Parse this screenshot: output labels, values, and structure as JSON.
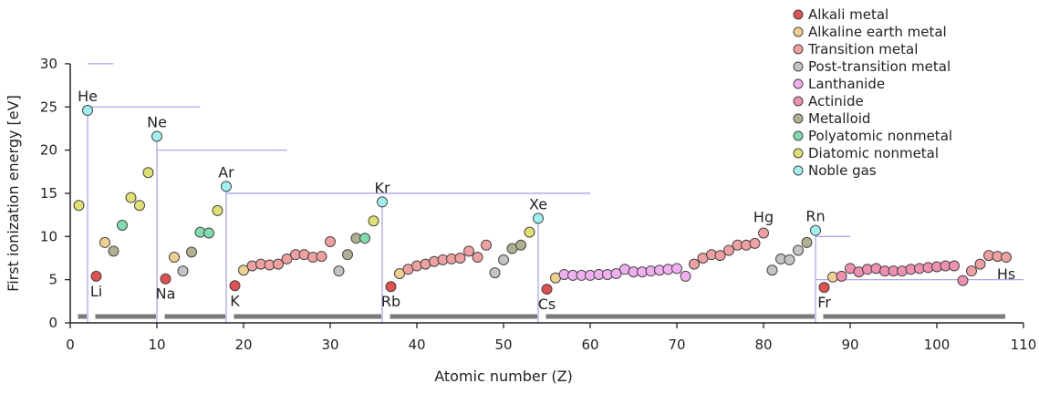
{
  "chart_data": {
    "type": "scatter",
    "xlabel": "Atomic number (Z)",
    "ylabel": "First ionization energy [eV]",
    "xlim": [
      0,
      110
    ],
    "ylim": [
      0,
      30
    ],
    "xticks": [
      0,
      10,
      20,
      30,
      40,
      50,
      60,
      70,
      80,
      90,
      100,
      110
    ],
    "yticks": [
      0,
      5,
      10,
      15,
      20,
      25,
      30
    ],
    "legend_position": "top-right",
    "categories": [
      {
        "key": "alkali",
        "name": "Alkali metal",
        "color": "#e05050"
      },
      {
        "key": "alkaline",
        "name": "Alkaline earth metal",
        "color": "#f0d090"
      },
      {
        "key": "transition",
        "name": "Transition metal",
        "color": "#f0a0a0"
      },
      {
        "key": "post",
        "name": "Post-transition metal",
        "color": "#c4c4c4"
      },
      {
        "key": "lanthanide",
        "name": "Lanthanide",
        "color": "#f0b0f0"
      },
      {
        "key": "actinide",
        "name": "Actinide",
        "color": "#f090b0"
      },
      {
        "key": "metalloid",
        "name": "Metalloid",
        "color": "#b0b090"
      },
      {
        "key": "polyatomic",
        "name": "Polyatomic nonmetal",
        "color": "#80dcb0"
      },
      {
        "key": "diatomic",
        "name": "Diatomic nonmetal",
        "color": "#e0e070"
      },
      {
        "key": "noble",
        "name": "Noble gas",
        "color": "#a0f0f0"
      }
    ],
    "points": [
      {
        "z": 1,
        "ie": 13.6,
        "cat": "diatomic"
      },
      {
        "z": 2,
        "ie": 24.6,
        "cat": "noble",
        "label": "He"
      },
      {
        "z": 3,
        "ie": 5.4,
        "cat": "alkali",
        "label": "Li"
      },
      {
        "z": 4,
        "ie": 9.3,
        "cat": "alkaline"
      },
      {
        "z": 5,
        "ie": 8.3,
        "cat": "metalloid"
      },
      {
        "z": 6,
        "ie": 11.3,
        "cat": "polyatomic"
      },
      {
        "z": 7,
        "ie": 14.5,
        "cat": "diatomic"
      },
      {
        "z": 8,
        "ie": 13.6,
        "cat": "diatomic"
      },
      {
        "z": 9,
        "ie": 17.4,
        "cat": "diatomic"
      },
      {
        "z": 10,
        "ie": 21.6,
        "cat": "noble",
        "label": "Ne"
      },
      {
        "z": 11,
        "ie": 5.1,
        "cat": "alkali",
        "label": "Na"
      },
      {
        "z": 12,
        "ie": 7.6,
        "cat": "alkaline"
      },
      {
        "z": 13,
        "ie": 6.0,
        "cat": "post"
      },
      {
        "z": 14,
        "ie": 8.2,
        "cat": "metalloid"
      },
      {
        "z": 15,
        "ie": 10.5,
        "cat": "polyatomic"
      },
      {
        "z": 16,
        "ie": 10.4,
        "cat": "polyatomic"
      },
      {
        "z": 17,
        "ie": 13.0,
        "cat": "diatomic"
      },
      {
        "z": 18,
        "ie": 15.8,
        "cat": "noble",
        "label": "Ar"
      },
      {
        "z": 19,
        "ie": 4.3,
        "cat": "alkali",
        "label": "K"
      },
      {
        "z": 20,
        "ie": 6.1,
        "cat": "alkaline"
      },
      {
        "z": 21,
        "ie": 6.6,
        "cat": "transition"
      },
      {
        "z": 22,
        "ie": 6.8,
        "cat": "transition"
      },
      {
        "z": 23,
        "ie": 6.7,
        "cat": "transition"
      },
      {
        "z": 24,
        "ie": 6.8,
        "cat": "transition"
      },
      {
        "z": 25,
        "ie": 7.4,
        "cat": "transition"
      },
      {
        "z": 26,
        "ie": 7.9,
        "cat": "transition"
      },
      {
        "z": 27,
        "ie": 7.9,
        "cat": "transition"
      },
      {
        "z": 28,
        "ie": 7.6,
        "cat": "transition"
      },
      {
        "z": 29,
        "ie": 7.7,
        "cat": "transition"
      },
      {
        "z": 30,
        "ie": 9.4,
        "cat": "transition"
      },
      {
        "z": 31,
        "ie": 6.0,
        "cat": "post"
      },
      {
        "z": 32,
        "ie": 7.9,
        "cat": "metalloid"
      },
      {
        "z": 33,
        "ie": 9.8,
        "cat": "metalloid"
      },
      {
        "z": 34,
        "ie": 9.8,
        "cat": "polyatomic"
      },
      {
        "z": 35,
        "ie": 11.8,
        "cat": "diatomic"
      },
      {
        "z": 36,
        "ie": 14.0,
        "cat": "noble",
        "label": "Kr"
      },
      {
        "z": 37,
        "ie": 4.2,
        "cat": "alkali",
        "label": "Rb"
      },
      {
        "z": 38,
        "ie": 5.7,
        "cat": "alkaline"
      },
      {
        "z": 39,
        "ie": 6.2,
        "cat": "transition"
      },
      {
        "z": 40,
        "ie": 6.6,
        "cat": "transition"
      },
      {
        "z": 41,
        "ie": 6.8,
        "cat": "transition"
      },
      {
        "z": 42,
        "ie": 7.1,
        "cat": "transition"
      },
      {
        "z": 43,
        "ie": 7.3,
        "cat": "transition"
      },
      {
        "z": 44,
        "ie": 7.4,
        "cat": "transition"
      },
      {
        "z": 45,
        "ie": 7.5,
        "cat": "transition"
      },
      {
        "z": 46,
        "ie": 8.3,
        "cat": "transition"
      },
      {
        "z": 47,
        "ie": 7.6,
        "cat": "transition"
      },
      {
        "z": 48,
        "ie": 9.0,
        "cat": "transition"
      },
      {
        "z": 49,
        "ie": 5.8,
        "cat": "post"
      },
      {
        "z": 50,
        "ie": 7.3,
        "cat": "post"
      },
      {
        "z": 51,
        "ie": 8.6,
        "cat": "metalloid"
      },
      {
        "z": 52,
        "ie": 9.0,
        "cat": "metalloid"
      },
      {
        "z": 53,
        "ie": 10.5,
        "cat": "diatomic"
      },
      {
        "z": 54,
        "ie": 12.1,
        "cat": "noble",
        "label": "Xe"
      },
      {
        "z": 55,
        "ie": 3.9,
        "cat": "alkali",
        "label": "Cs"
      },
      {
        "z": 56,
        "ie": 5.2,
        "cat": "alkaline"
      },
      {
        "z": 57,
        "ie": 5.6,
        "cat": "lanthanide"
      },
      {
        "z": 58,
        "ie": 5.5,
        "cat": "lanthanide"
      },
      {
        "z": 59,
        "ie": 5.5,
        "cat": "lanthanide"
      },
      {
        "z": 60,
        "ie": 5.5,
        "cat": "lanthanide"
      },
      {
        "z": 61,
        "ie": 5.6,
        "cat": "lanthanide"
      },
      {
        "z": 62,
        "ie": 5.6,
        "cat": "lanthanide"
      },
      {
        "z": 63,
        "ie": 5.7,
        "cat": "lanthanide"
      },
      {
        "z": 64,
        "ie": 6.2,
        "cat": "lanthanide"
      },
      {
        "z": 65,
        "ie": 5.9,
        "cat": "lanthanide"
      },
      {
        "z": 66,
        "ie": 5.9,
        "cat": "lanthanide"
      },
      {
        "z": 67,
        "ie": 6.0,
        "cat": "lanthanide"
      },
      {
        "z": 68,
        "ie": 6.1,
        "cat": "lanthanide"
      },
      {
        "z": 69,
        "ie": 6.2,
        "cat": "lanthanide"
      },
      {
        "z": 70,
        "ie": 6.3,
        "cat": "lanthanide"
      },
      {
        "z": 71,
        "ie": 5.4,
        "cat": "lanthanide"
      },
      {
        "z": 72,
        "ie": 6.8,
        "cat": "transition"
      },
      {
        "z": 73,
        "ie": 7.5,
        "cat": "transition"
      },
      {
        "z": 74,
        "ie": 7.9,
        "cat": "transition"
      },
      {
        "z": 75,
        "ie": 7.8,
        "cat": "transition"
      },
      {
        "z": 76,
        "ie": 8.4,
        "cat": "transition"
      },
      {
        "z": 77,
        "ie": 9.0,
        "cat": "transition"
      },
      {
        "z": 78,
        "ie": 9.0,
        "cat": "transition"
      },
      {
        "z": 79,
        "ie": 9.2,
        "cat": "transition"
      },
      {
        "z": 80,
        "ie": 10.4,
        "cat": "transition",
        "label": "Hg"
      },
      {
        "z": 81,
        "ie": 6.1,
        "cat": "post"
      },
      {
        "z": 82,
        "ie": 7.4,
        "cat": "post"
      },
      {
        "z": 83,
        "ie": 7.3,
        "cat": "post"
      },
      {
        "z": 84,
        "ie": 8.4,
        "cat": "post"
      },
      {
        "z": 85,
        "ie": 9.3,
        "cat": "metalloid"
      },
      {
        "z": 86,
        "ie": 10.7,
        "cat": "noble",
        "label": "Rn"
      },
      {
        "z": 87,
        "ie": 4.1,
        "cat": "alkali",
        "label": "Fr"
      },
      {
        "z": 88,
        "ie": 5.3,
        "cat": "alkaline"
      },
      {
        "z": 89,
        "ie": 5.4,
        "cat": "actinide"
      },
      {
        "z": 90,
        "ie": 6.3,
        "cat": "actinide"
      },
      {
        "z": 91,
        "ie": 5.9,
        "cat": "actinide"
      },
      {
        "z": 92,
        "ie": 6.2,
        "cat": "actinide"
      },
      {
        "z": 93,
        "ie": 6.3,
        "cat": "actinide"
      },
      {
        "z": 94,
        "ie": 6.0,
        "cat": "actinide"
      },
      {
        "z": 95,
        "ie": 6.0,
        "cat": "actinide"
      },
      {
        "z": 96,
        "ie": 6.0,
        "cat": "actinide"
      },
      {
        "z": 97,
        "ie": 6.2,
        "cat": "actinide"
      },
      {
        "z": 98,
        "ie": 6.3,
        "cat": "actinide"
      },
      {
        "z": 99,
        "ie": 6.4,
        "cat": "actinide"
      },
      {
        "z": 100,
        "ie": 6.5,
        "cat": "actinide"
      },
      {
        "z": 101,
        "ie": 6.6,
        "cat": "actinide"
      },
      {
        "z": 102,
        "ie": 6.6,
        "cat": "actinide"
      },
      {
        "z": 103,
        "ie": 4.9,
        "cat": "actinide"
      },
      {
        "z": 104,
        "ie": 6.0,
        "cat": "transition"
      },
      {
        "z": 105,
        "ie": 6.8,
        "cat": "transition"
      },
      {
        "z": 106,
        "ie": 7.8,
        "cat": "transition"
      },
      {
        "z": 107,
        "ie": 7.7,
        "cat": "transition"
      },
      {
        "z": 108,
        "ie": 7.6,
        "cat": "transition",
        "label": "Hs"
      }
    ],
    "period_guides": [
      {
        "from_z": 2,
        "to_z": 5,
        "ie": 30
      },
      {
        "from_z": 2,
        "to_z": 15,
        "ie": 25
      },
      {
        "from_z": 10,
        "to_z": 25,
        "ie": 20
      },
      {
        "from_z": 18,
        "to_z": 60,
        "ie": 15
      },
      {
        "from_z": 86,
        "to_z": 90,
        "ie": 10
      },
      {
        "from_z": 86,
        "to_z": 110,
        "ie": 5
      }
    ],
    "period_separators": [
      2,
      10,
      18,
      36,
      54,
      86
    ],
    "period_bars": [
      {
        "from": 1,
        "to": 2
      },
      {
        "from": 3,
        "to": 10
      },
      {
        "from": 11,
        "to": 18
      },
      {
        "from": 19,
        "to": 36
      },
      {
        "from": 37,
        "to": 54
      },
      {
        "from": 55,
        "to": 86
      },
      {
        "from": 87,
        "to": 108
      }
    ]
  }
}
